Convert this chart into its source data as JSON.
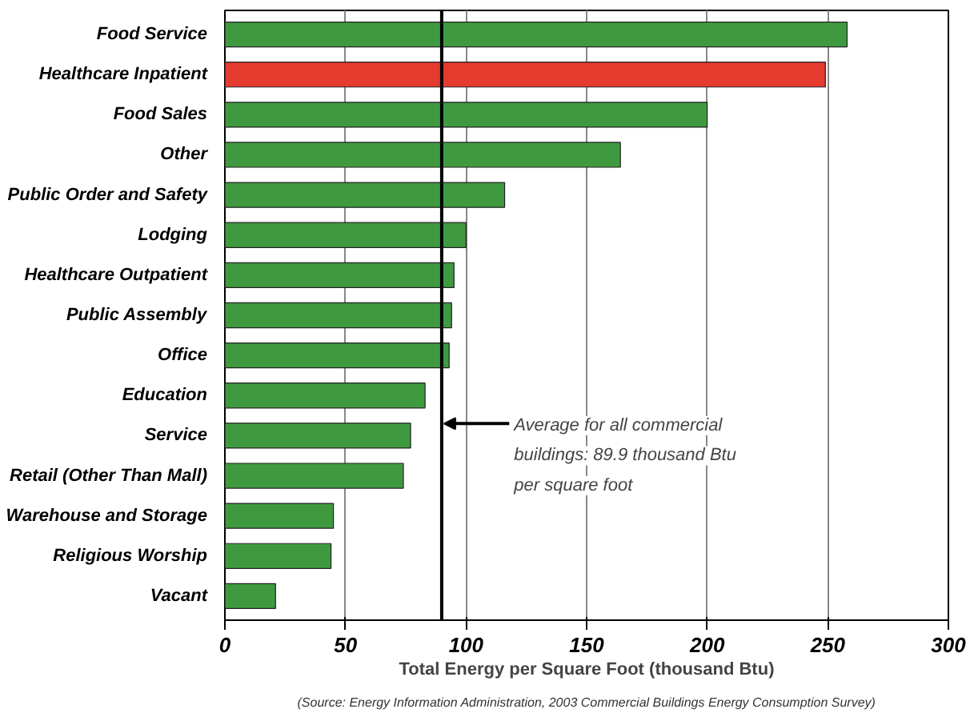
{
  "chart_data": {
    "type": "bar",
    "orientation": "horizontal",
    "xlabel": "Total Energy per Square Foot (thousand Btu)",
    "categories": [
      "Food Service",
      "Healthcare Inpatient",
      "Food Sales",
      "Other",
      "Public Order and Safety",
      "Lodging",
      "Healthcare Outpatient",
      "Public Assembly",
      "Office",
      "Education",
      "Service",
      "Retail (Other Than Mall)",
      "Warehouse and Storage",
      "Religious Worship",
      "Vacant"
    ],
    "values": [
      258,
      249,
      200,
      164,
      116,
      100,
      95,
      94,
      93,
      83,
      77,
      74,
      45,
      44,
      21
    ],
    "colors": [
      "#3f9a3f",
      "#e53a2e",
      "#3f9a3f",
      "#3f9a3f",
      "#3f9a3f",
      "#3f9a3f",
      "#3f9a3f",
      "#3f9a3f",
      "#3f9a3f",
      "#3f9a3f",
      "#3f9a3f",
      "#3f9a3f",
      "#3f9a3f",
      "#3f9a3f",
      "#3f9a3f"
    ],
    "xlim": [
      0,
      300
    ],
    "xticks": [
      0,
      50,
      100,
      150,
      200,
      250,
      300
    ],
    "grid": "x",
    "ref_lines": [
      {
        "axis": "x",
        "value": 89.9,
        "label": "Average for all commercial buildings:  89.9 thousand Btu per square foot",
        "color": "#000000"
      }
    ],
    "annotations": [
      "(Source: Energy Information Administration, 2003 Commercial Buildings Energy Consumption Survey)"
    ]
  }
}
